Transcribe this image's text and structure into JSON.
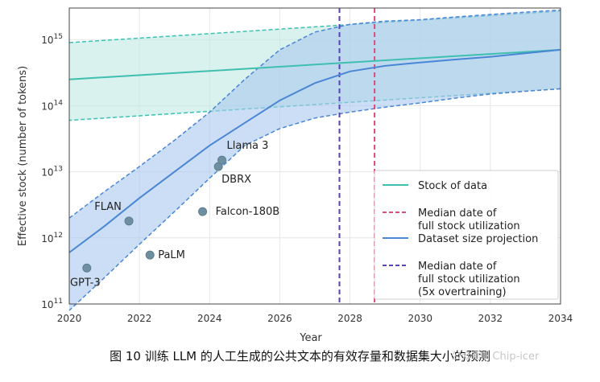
{
  "caption": "图 10 训练 LLM 的人工生成的公共文本的有效存量和数据集大小的预测",
  "watermark": "公众号 · Chip-icer",
  "colors": {
    "stock": "#3fbfb0",
    "stock_fill": "#bfe9e3",
    "projection": "#4a86d6",
    "projection_fill": "#a9c8ee",
    "median_full": "#e04a7a",
    "median_5x": "#5a3fc0"
  },
  "chart_data": {
    "type": "line",
    "xlabel": "Year",
    "ylabel": "Effective stock (number of tokens)",
    "xlim": [
      2020,
      2034
    ],
    "ylim": [
      100000000000.0,
      3000000000000000.0
    ],
    "yscale": "log",
    "xticks": [
      "2020",
      "2022",
      "2024",
      "2026",
      "2028",
      "2030",
      "2032",
      "2034"
    ],
    "yticks": [
      "10^11",
      "10^12",
      "10^13",
      "10^14",
      "10^15"
    ],
    "grid": true,
    "legend_position": "lower-right",
    "series": [
      {
        "name": "Stock of data",
        "x": [
          2020,
          2034
        ],
        "y": [
          250000000000000.0,
          700000000000000.0
        ],
        "lower": [
          60000000000000.0,
          180000000000000.0
        ],
        "upper": [
          900000000000000.0,
          2700000000000000.0
        ]
      },
      {
        "name": "Dataset size projection",
        "x": [
          2020,
          2021,
          2022,
          2023,
          2024,
          2025,
          2026,
          2027,
          2028,
          2029,
          2030,
          2031,
          2032,
          2033,
          2034
        ],
        "y": [
          600000000000.0,
          1500000000000.0,
          4000000000000.0,
          10000000000000.0,
          25000000000000.0,
          55000000000000.0,
          120000000000000.0,
          220000000000000.0,
          330000000000000.0,
          400000000000000.0,
          450000000000000.0,
          500000000000000.0,
          550000000000000.0,
          620000000000000.0,
          700000000000000.0
        ],
        "lower": [
          80000000000.0,
          250000000000.0,
          800000000000.0,
          2500000000000.0,
          8000000000000.0,
          25000000000000.0,
          45000000000000.0,
          65000000000000.0,
          80000000000000.0,
          95000000000000.0,
          110000000000000.0,
          130000000000000.0,
          150000000000000.0,
          165000000000000.0,
          180000000000000.0
        ],
        "upper": [
          2000000000000.0,
          5000000000000.0,
          12000000000000.0,
          30000000000000.0,
          80000000000000.0,
          250000000000000.0,
          700000000000000.0,
          1300000000000000.0,
          1700000000000000.0,
          1900000000000000.0,
          2000000000000000.0,
          2200000000000000.0,
          2400000000000000.0,
          2600000000000000.0,
          2800000000000000.0
        ]
      }
    ],
    "vertical_lines": [
      {
        "name": "Median date of full stock utilization",
        "x": 2028.7,
        "style": "dashed"
      },
      {
        "name": "Median date of full stock utilization (5x overtraining)",
        "x": 2027.7,
        "style": "dashed"
      }
    ],
    "points": [
      {
        "label": "GPT-3",
        "x": 2020.5,
        "y": 350000000000.0
      },
      {
        "label": "FLAN",
        "x": 2021.7,
        "y": 1800000000000.0
      },
      {
        "label": "PaLM",
        "x": 2022.3,
        "y": 550000000000.0
      },
      {
        "label": "Falcon-180B",
        "x": 2023.8,
        "y": 2500000000000.0
      },
      {
        "label": "DBRX",
        "x": 2024.25,
        "y": 12000000000000.0
      },
      {
        "label": "Llama 3",
        "x": 2024.35,
        "y": 15000000000000.0
      }
    ],
    "legend": [
      {
        "label": "Stock of data",
        "style": "solid-teal"
      },
      {
        "label": "Median date of\nfull stock utilization",
        "style": "dashed-pink"
      },
      {
        "label": "Dataset size projection",
        "style": "solid-blue"
      },
      {
        "label": "Median date of\nfull stock utilization\n(5x overtraining)",
        "style": "dashed-purple"
      }
    ]
  }
}
